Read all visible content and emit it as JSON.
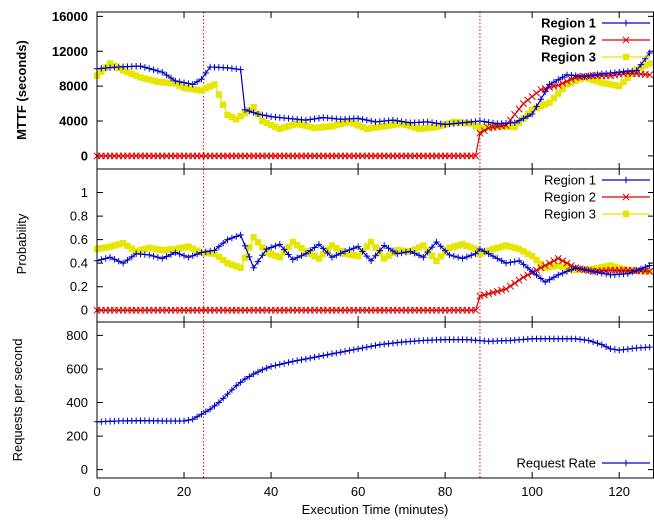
{
  "colors": {
    "region1": "#0000cc",
    "region2": "#dd0000",
    "region3": "#e6e600",
    "frame": "#000000",
    "vline": "#dd0000"
  },
  "chart_data": [
    {
      "type": "line",
      "ylabel": "MTTF (seconds)",
      "ylim": [
        -1500,
        16500
      ],
      "yticks": [
        0,
        4000,
        8000,
        12000,
        16000
      ],
      "xlim": [
        0,
        128
      ],
      "legend": "top-right",
      "vlines_x": [
        24.5,
        88
      ],
      "series": [
        {
          "name": "Region 1",
          "x": [
            0,
            5,
            10,
            15,
            18,
            22,
            24,
            26,
            30,
            33,
            34,
            37,
            40,
            44,
            48,
            52,
            56,
            60,
            64,
            68,
            72,
            76,
            80,
            84,
            88,
            92,
            96,
            100,
            104,
            108,
            112,
            116,
            120,
            124,
            127
          ],
          "values": [
            10000,
            10200,
            10300,
            9600,
            8600,
            8200,
            8800,
            10200,
            10100,
            9900,
            5300,
            4800,
            4500,
            4300,
            4100,
            4400,
            4200,
            4300,
            3900,
            4100,
            3800,
            3900,
            3600,
            3800,
            4000,
            3700,
            3800,
            4800,
            8200,
            9300,
            9100,
            9400,
            9600,
            9800,
            11800
          ]
        },
        {
          "name": "Region 2",
          "x": [
            0,
            10,
            20,
            30,
            40,
            50,
            60,
            70,
            80,
            87,
            88,
            90,
            94,
            98,
            102,
            106,
            110,
            114,
            118,
            122,
            127
          ],
          "values": [
            0,
            0,
            0,
            0,
            0,
            0,
            0,
            0,
            0,
            0,
            2600,
            3200,
            3500,
            6000,
            7600,
            8100,
            9000,
            9200,
            9200,
            9500,
            9300
          ]
        },
        {
          "name": "Region 3",
          "x": [
            0,
            3,
            6,
            10,
            14,
            18,
            20,
            24,
            27,
            30,
            32,
            36,
            38,
            42,
            46,
            50,
            54,
            58,
            62,
            66,
            70,
            74,
            78,
            82,
            86,
            88,
            92,
            96,
            100,
            104,
            108,
            112,
            116,
            120,
            124,
            127
          ],
          "values": [
            9200,
            10600,
            9800,
            9000,
            8500,
            8300,
            7800,
            7500,
            8200,
            4700,
            4200,
            5600,
            4000,
            3100,
            3700,
            3200,
            3400,
            3900,
            3100,
            3400,
            3700,
            3100,
            3300,
            3900,
            3700,
            3200,
            3400,
            3300,
            5300,
            6100,
            8200,
            9000,
            8400,
            8000,
            9900,
            10600
          ]
        }
      ]
    },
    {
      "type": "line",
      "ylabel": "Probability",
      "ylim": [
        -0.1,
        1.2
      ],
      "yticks": [
        0,
        0.2,
        0.4,
        0.6,
        0.8,
        1
      ],
      "xlim": [
        0,
        128
      ],
      "legend": "top-right",
      "vlines_x": [
        24.5,
        88
      ],
      "series": [
        {
          "name": "Region 1",
          "x": [
            0,
            3,
            6,
            9,
            12,
            15,
            18,
            21,
            24,
            27,
            30,
            33,
            36,
            39,
            42,
            45,
            48,
            51,
            54,
            57,
            60,
            63,
            66,
            69,
            72,
            75,
            78,
            81,
            84,
            87,
            88,
            91,
            94,
            97,
            100,
            103,
            106,
            110,
            114,
            118,
            122,
            127
          ],
          "values": [
            0.42,
            0.45,
            0.4,
            0.48,
            0.47,
            0.44,
            0.49,
            0.45,
            0.49,
            0.51,
            0.6,
            0.64,
            0.36,
            0.52,
            0.56,
            0.43,
            0.48,
            0.56,
            0.45,
            0.5,
            0.54,
            0.42,
            0.55,
            0.48,
            0.5,
            0.45,
            0.58,
            0.47,
            0.44,
            0.48,
            0.52,
            0.46,
            0.4,
            0.42,
            0.33,
            0.24,
            0.3,
            0.36,
            0.33,
            0.3,
            0.31,
            0.38
          ]
        },
        {
          "name": "Region 2",
          "x": [
            0,
            10,
            20,
            30,
            40,
            50,
            60,
            70,
            80,
            87,
            88,
            90,
            94,
            98,
            102,
            106,
            110,
            114,
            118,
            122,
            127
          ],
          "values": [
            0,
            0,
            0,
            0,
            0,
            0,
            0,
            0,
            0,
            0,
            0.12,
            0.14,
            0.18,
            0.28,
            0.36,
            0.44,
            0.36,
            0.33,
            0.34,
            0.34,
            0.33
          ]
        },
        {
          "name": "Region 3",
          "x": [
            0,
            3,
            6,
            9,
            12,
            15,
            18,
            21,
            24,
            27,
            30,
            33,
            36,
            39,
            42,
            45,
            48,
            51,
            54,
            57,
            60,
            63,
            66,
            69,
            72,
            75,
            78,
            81,
            84,
            87,
            88,
            91,
            94,
            97,
            100,
            103,
            106,
            110,
            114,
            118,
            122,
            127
          ],
          "values": [
            0.52,
            0.54,
            0.57,
            0.5,
            0.53,
            0.51,
            0.52,
            0.54,
            0.49,
            0.48,
            0.4,
            0.36,
            0.62,
            0.49,
            0.45,
            0.58,
            0.5,
            0.44,
            0.55,
            0.48,
            0.46,
            0.58,
            0.44,
            0.51,
            0.5,
            0.55,
            0.42,
            0.53,
            0.56,
            0.52,
            0.48,
            0.52,
            0.55,
            0.52,
            0.46,
            0.36,
            0.38,
            0.34,
            0.35,
            0.38,
            0.34,
            0.33
          ]
        }
      ]
    },
    {
      "type": "line",
      "ylabel": "Requests per second",
      "xlabel": "Execution Time (minutes)",
      "ylim": [
        -50,
        880
      ],
      "yticks": [
        0,
        200,
        400,
        600,
        800
      ],
      "xlim": [
        0,
        128
      ],
      "xticks": [
        0,
        20,
        40,
        60,
        80,
        100,
        120
      ],
      "legend": "bottom-right",
      "vlines_x": [
        24.5,
        88
      ],
      "series": [
        {
          "name": "Request Rate",
          "x": [
            0,
            5,
            10,
            15,
            20,
            22,
            24,
            26,
            28,
            30,
            32,
            34,
            36,
            38,
            40,
            45,
            50,
            55,
            60,
            65,
            70,
            75,
            80,
            85,
            90,
            95,
            100,
            105,
            110,
            113,
            116,
            118,
            120,
            124,
            127
          ],
          "values": [
            285,
            290,
            292,
            290,
            290,
            300,
            330,
            360,
            400,
            450,
            500,
            540,
            570,
            595,
            615,
            645,
            670,
            695,
            720,
            745,
            760,
            770,
            775,
            775,
            765,
            770,
            780,
            780,
            780,
            770,
            745,
            720,
            712,
            725,
            730
          ]
        }
      ]
    }
  ]
}
